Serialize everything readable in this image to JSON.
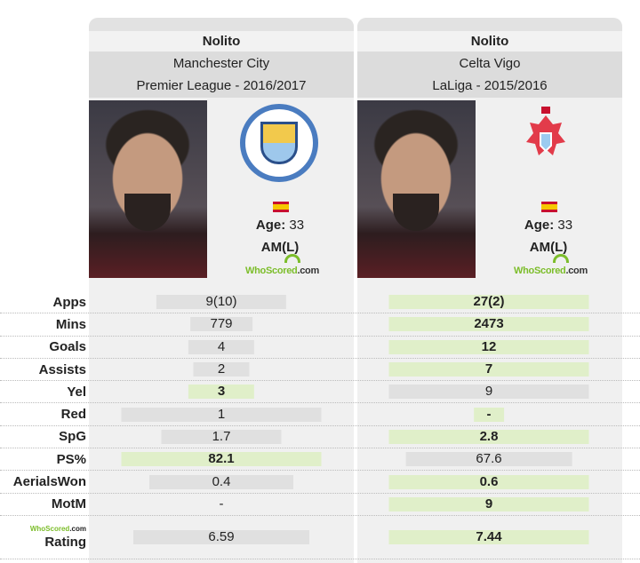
{
  "players": [
    {
      "name": "Nolito",
      "team": "Manchester City",
      "league": "Premier League - 2016/2017",
      "age_label": "Age:",
      "age": "33",
      "position": "AM(L)",
      "crest": "manchester-city-crest",
      "flag": "spain-flag"
    },
    {
      "name": "Nolito",
      "team": "Celta Vigo",
      "league": "LaLiga - 2015/2016",
      "age_label": "Age:",
      "age": "33",
      "position": "AM(L)",
      "crest": "celta-vigo-crest",
      "flag": "spain-flag"
    }
  ],
  "whoscored_logo": {
    "who": "WhoScored",
    "dot": ".",
    "com": "com"
  },
  "colors": {
    "best": "#e0efc9",
    "normal": "#e0e0e0"
  },
  "stats": [
    {
      "label": "Apps",
      "left": {
        "value": "9(10)",
        "best": false,
        "bar_pct": 65
      },
      "right": {
        "value": "27(2)",
        "best": true,
        "bar_pct": 100
      }
    },
    {
      "label": "Mins",
      "left": {
        "value": "779",
        "best": false,
        "bar_pct": 31
      },
      "right": {
        "value": "2473",
        "best": true,
        "bar_pct": 100
      }
    },
    {
      "label": "Goals",
      "left": {
        "value": "4",
        "best": false,
        "bar_pct": 33
      },
      "right": {
        "value": "12",
        "best": true,
        "bar_pct": 100
      }
    },
    {
      "label": "Assists",
      "left": {
        "value": "2",
        "best": false,
        "bar_pct": 28
      },
      "right": {
        "value": "7",
        "best": true,
        "bar_pct": 100
      }
    },
    {
      "label": "Yel",
      "left": {
        "value": "3",
        "best": true,
        "bar_pct": 33
      },
      "right": {
        "value": "9",
        "best": false,
        "bar_pct": 100
      }
    },
    {
      "label": "Red",
      "left": {
        "value": "1",
        "best": false,
        "bar_pct": 100
      },
      "right": {
        "value": "-",
        "best": true,
        "bar_pct": 15
      }
    },
    {
      "label": "SpG",
      "left": {
        "value": "1.7",
        "best": false,
        "bar_pct": 60
      },
      "right": {
        "value": "2.8",
        "best": true,
        "bar_pct": 100
      }
    },
    {
      "label": "PS%",
      "left": {
        "value": "82.1",
        "best": true,
        "bar_pct": 100
      },
      "right": {
        "value": "67.6",
        "best": false,
        "bar_pct": 83
      }
    },
    {
      "label": "AerialsWon",
      "left": {
        "value": "0.4",
        "best": false,
        "bar_pct": 72
      },
      "right": {
        "value": "0.6",
        "best": true,
        "bar_pct": 100
      }
    },
    {
      "label": "MotM",
      "left": {
        "value": "-",
        "best": false,
        "bar_pct": 0
      },
      "right": {
        "value": "9",
        "best": true,
        "bar_pct": 100
      }
    },
    {
      "label": "Rating",
      "left": {
        "value": "6.59",
        "best": false,
        "bar_pct": 88
      },
      "right": {
        "value": "7.44",
        "best": true,
        "bar_pct": 100
      }
    }
  ]
}
